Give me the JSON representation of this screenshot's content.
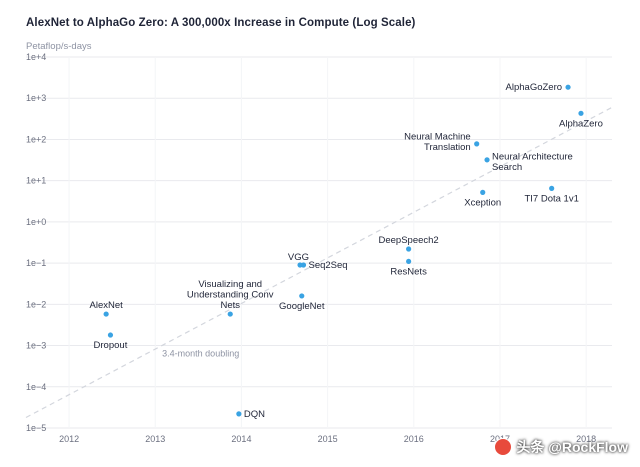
{
  "chart_data": {
    "type": "scatter",
    "title": "AlexNet to AlphaGo Zero: A 300,000x Increase in Compute (Log Scale)",
    "ylabel": "Petaflop/s-days",
    "yscale": "log",
    "ylim": [
      1e-05,
      10000.0
    ],
    "xlim": [
      2011.5,
      2018.3
    ],
    "y_ticks": [
      {
        "label": "1e+4",
        "value": 10000
      },
      {
        "label": "1e+3",
        "value": 1000
      },
      {
        "label": "1e+2",
        "value": 100
      },
      {
        "label": "1e+1",
        "value": 10
      },
      {
        "label": "1e+0",
        "value": 1
      },
      {
        "label": "1e−1",
        "value": 0.1
      },
      {
        "label": "1e−2",
        "value": 0.01
      },
      {
        "label": "1e−3",
        "value": 0.001
      },
      {
        "label": "1e−4",
        "value": 0.0001
      },
      {
        "label": "1e−5",
        "value": 1e-05
      }
    ],
    "x_ticks": [
      {
        "label": "2012",
        "value": 2012
      },
      {
        "label": "2013",
        "value": 2013
      },
      {
        "label": "2014",
        "value": 2014
      },
      {
        "label": "2015",
        "value": 2015
      },
      {
        "label": "2016",
        "value": 2016
      },
      {
        "label": "2017",
        "value": 2017
      },
      {
        "label": "2018",
        "value": 2018
      }
    ],
    "points": [
      {
        "label": [
          "AlexNet"
        ],
        "x": 2012.43,
        "y": 0.0058,
        "label_pos": "above"
      },
      {
        "label": [
          "Dropout"
        ],
        "x": 2012.48,
        "y": 0.0018,
        "label_pos": "below"
      },
      {
        "label": [
          "Visualizing and",
          "Understanding Conv",
          "Nets"
        ],
        "x": 2013.87,
        "y": 0.0058,
        "label_pos": "above-left"
      },
      {
        "label": [
          "DQN"
        ],
        "x": 2013.97,
        "y": 2.2e-05,
        "label_pos": "right"
      },
      {
        "label": [
          "GoogleNet"
        ],
        "x": 2014.7,
        "y": 0.016,
        "label_pos": "below"
      },
      {
        "label": [
          "VGG"
        ],
        "x": 2014.68,
        "y": 0.09,
        "label_pos": "above-left"
      },
      {
        "label": [
          "Seq2Seq"
        ],
        "x": 2014.72,
        "y": 0.09,
        "label_pos": "right"
      },
      {
        "label": [
          "DeepSpeech2"
        ],
        "x": 2015.94,
        "y": 0.22,
        "label_pos": "above"
      },
      {
        "label": [
          "ResNets"
        ],
        "x": 2015.94,
        "y": 0.11,
        "label_pos": "below"
      },
      {
        "label": [
          "Neural Machine",
          "Translation"
        ],
        "x": 2016.73,
        "y": 78,
        "label_pos": "left"
      },
      {
        "label": [
          "Neural Architecture",
          "Search"
        ],
        "x": 2016.85,
        "y": 32,
        "label_pos": "right"
      },
      {
        "label": [
          "Xception"
        ],
        "x": 2016.8,
        "y": 5.2,
        "label_pos": "below"
      },
      {
        "label": [
          "TI7 Dota 1v1"
        ],
        "x": 2017.6,
        "y": 6.5,
        "label_pos": "below"
      },
      {
        "label": [
          "AlphaGoZero"
        ],
        "x": 2017.79,
        "y": 1850,
        "label_pos": "left"
      },
      {
        "label": [
          "AlphaZero"
        ],
        "x": 2017.94,
        "y": 430,
        "label_pos": "below"
      }
    ],
    "annotations": [
      {
        "text": "3.4-month doubling",
        "x": 2013.08,
        "y": 0.00065
      }
    ],
    "trendline": {
      "x": [
        2011.5,
        2018.3
      ],
      "y": [
        1.8e-05,
        600
      ]
    },
    "grid": "horizontal",
    "legend": "none",
    "colors": {
      "point": "#3aa3e3",
      "trend": "#d3d6dd",
      "grid": "#e9eaee",
      "text": "#1f2437",
      "muted": "#8e93a3"
    }
  },
  "watermark": {
    "text": "头条 @RockFlow",
    "icon": "toutiao-logo-icon"
  }
}
